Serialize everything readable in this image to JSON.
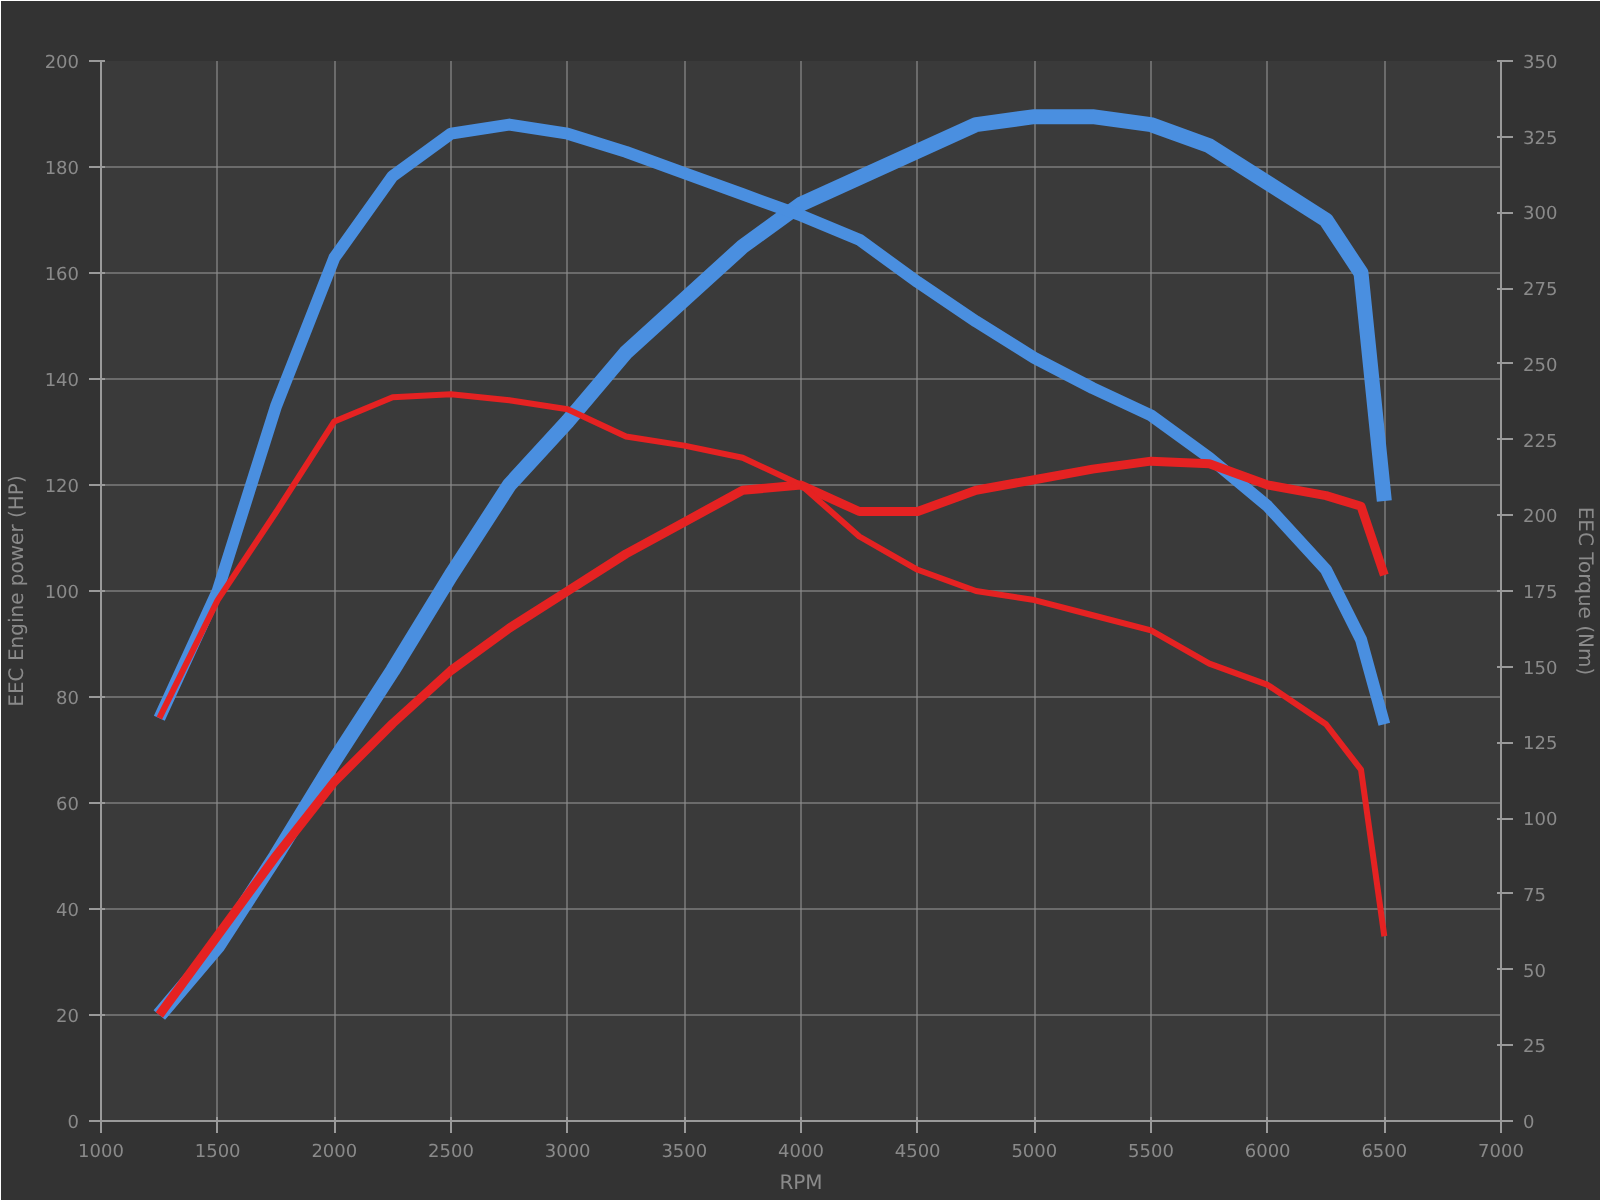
{
  "chart_data": {
    "type": "line",
    "xlabel": "RPM",
    "ylabel": "EEC Engine power (HP)",
    "y2label": "EEC Torque (Nm)",
    "x": [
      1250,
      1500,
      1750,
      2000,
      2250,
      2500,
      2750,
      3000,
      3250,
      3500,
      3750,
      4000,
      4250,
      4500,
      4750,
      5000,
      5250,
      5500,
      5750,
      6000,
      6250,
      6400,
      6500
    ],
    "xlim": [
      1000,
      7000
    ],
    "xticks": [
      1000,
      1500,
      2000,
      2500,
      3000,
      3500,
      4000,
      4500,
      5000,
      5500,
      6000,
      6500,
      7000
    ],
    "ylim": [
      0,
      200
    ],
    "yticks": [
      0,
      20,
      40,
      60,
      80,
      100,
      120,
      140,
      160,
      180,
      200
    ],
    "y2lim": [
      0,
      350
    ],
    "y2ticks": [
      0,
      25,
      50,
      75,
      100,
      125,
      150,
      175,
      200,
      225,
      250,
      275,
      300,
      325,
      350
    ],
    "grid": true,
    "line_style": "solid",
    "series": [
      {
        "color": "#4a8fe0",
        "values": [
          20,
          33,
          50,
          68,
          85,
          103,
          120,
          132,
          145,
          155,
          165,
          173,
          178,
          183,
          188,
          189.5,
          189.5,
          188,
          184,
          177,
          170,
          160,
          117
        ]
      },
      {
        "color": "#4a8fe0",
        "axis": "y2",
        "values": [
          133,
          175,
          236,
          285,
          312,
          326,
          329,
          326,
          320,
          313,
          306,
          299,
          291,
          277,
          264,
          252,
          242,
          233,
          219,
          203,
          182,
          159,
          131
        ]
      },
      {
        "color": "#e52222",
        "values": [
          20,
          35,
          50,
          64,
          75,
          85,
          93,
          100,
          107,
          113,
          119,
          120,
          115,
          115,
          119,
          121,
          123,
          124.5,
          124,
          120,
          118,
          116,
          103
        ]
      },
      {
        "color": "#e52222",
        "axis": "y2",
        "values": [
          133,
          172,
          201,
          231,
          239,
          240,
          238,
          235,
          226,
          223,
          219,
          210,
          193,
          182,
          175,
          172,
          167,
          162,
          151,
          144,
          131,
          116,
          61
        ]
      }
    ]
  }
}
